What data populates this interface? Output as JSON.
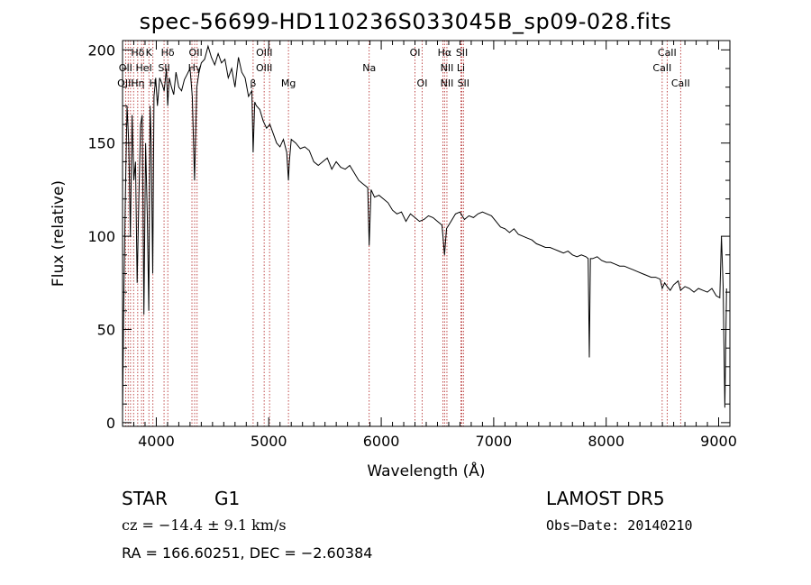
{
  "chart_data": {
    "type": "line",
    "title": "spec-56699-HD110236S033045B_sp09-028.fits",
    "xlabel": "Wavelength (Å)",
    "ylabel": "Flux (relative)",
    "xlim": [
      3700,
      9100
    ],
    "ylim": [
      -2,
      205
    ],
    "xticks": [
      4000,
      5000,
      6000,
      7000,
      8000,
      9000
    ],
    "yticks": [
      0,
      50,
      100,
      150,
      200
    ],
    "grid": false,
    "series": [
      {
        "x": [
          3700,
          3710,
          3725,
          3740,
          3755,
          3770,
          3785,
          3800,
          3815,
          3830,
          3845,
          3860,
          3875,
          3890,
          3905,
          3920,
          3933,
          3945,
          3955,
          3968,
          3980,
          3995,
          4010,
          4030,
          4050,
          4070,
          4090,
          4101,
          4115,
          4135,
          4155,
          4175,
          4200,
          4225,
          4250,
          4275,
          4300,
          4320,
          4340,
          4360,
          4380,
          4400,
          4430,
          4460,
          4490,
          4520,
          4550,
          4580,
          4610,
          4640,
          4670,
          4700,
          4730,
          4760,
          4790,
          4820,
          4850,
          4861,
          4875,
          4890,
          4920,
          4950,
          4980,
          5010,
          5040,
          5070,
          5100,
          5130,
          5160,
          5175,
          5183,
          5200,
          5240,
          5280,
          5320,
          5360,
          5400,
          5440,
          5480,
          5520,
          5560,
          5600,
          5640,
          5680,
          5720,
          5760,
          5800,
          5840,
          5880,
          5893,
          5910,
          5940,
          5980,
          6020,
          6060,
          6100,
          6140,
          6180,
          6220,
          6260,
          6300,
          6340,
          6380,
          6420,
          6460,
          6500,
          6540,
          6563,
          6580,
          6620,
          6660,
          6700,
          6740,
          6780,
          6820,
          6860,
          6900,
          6940,
          6980,
          7020,
          7060,
          7100,
          7140,
          7180,
          7220,
          7260,
          7300,
          7340,
          7380,
          7420,
          7460,
          7500,
          7540,
          7580,
          7620,
          7660,
          7700,
          7740,
          7780,
          7820,
          7840,
          7850,
          7860,
          7880,
          7920,
          7960,
          8000,
          8040,
          8080,
          8120,
          8160,
          8200,
          8240,
          8280,
          8320,
          8360,
          8400,
          8440,
          8480,
          8498,
          8520,
          8542,
          8570,
          8600,
          8640,
          8662,
          8700,
          8740,
          8780,
          8820,
          8860,
          8900,
          8940,
          8980,
          9010,
          9025,
          9040,
          9055,
          9070
        ],
        "y": [
          5,
          60,
          120,
          170,
          150,
          100,
          165,
          130,
          140,
          75,
          120,
          160,
          165,
          58,
          150,
          110,
          60,
          170,
          150,
          80,
          175,
          185,
          170,
          185,
          182,
          178,
          190,
          170,
          185,
          180,
          176,
          188,
          180,
          178,
          184,
          187,
          190,
          175,
          130,
          180,
          188,
          193,
          195,
          202,
          196,
          192,
          198,
          193,
          195,
          185,
          190,
          180,
          196,
          188,
          185,
          175,
          178,
          145,
          172,
          170,
          168,
          162,
          158,
          160,
          155,
          150,
          148,
          152,
          145,
          130,
          140,
          152,
          150,
          147,
          148,
          146,
          140,
          138,
          140,
          142,
          136,
          140,
          137,
          136,
          138,
          134,
          130,
          128,
          126,
          95,
          125,
          121,
          122,
          120,
          118,
          114,
          112,
          113,
          108,
          112,
          110,
          108,
          109,
          111,
          110,
          108,
          106,
          90,
          104,
          108,
          112,
          113,
          109,
          111,
          110,
          112,
          113,
          112,
          111,
          108,
          105,
          104,
          102,
          104,
          101,
          100,
          99,
          98,
          96,
          95,
          94,
          94,
          93,
          92,
          91,
          92,
          90,
          89,
          90,
          89,
          88,
          35,
          88,
          88,
          89,
          87,
          86,
          86,
          85,
          84,
          84,
          83,
          82,
          81,
          80,
          79,
          78,
          78,
          77,
          72,
          75,
          73,
          71,
          74,
          76,
          71,
          73,
          72,
          70,
          72,
          71,
          70,
          72,
          68,
          67,
          100,
          73,
          8,
          72
        ]
      }
    ],
    "line_labels": [
      {
        "name": "Hδ",
        "x": 3835,
        "row": 1
      },
      {
        "name": "K",
        "x": 3934,
        "row": 1
      },
      {
        "name": "Hδ",
        "x": 4102,
        "row": 1
      },
      {
        "name": "OII",
        "x": 4350,
        "row": 1
      },
      {
        "name": "OIII",
        "x": 4960,
        "row": 1
      },
      {
        "name": "OI",
        "x": 6300,
        "row": 1
      },
      {
        "name": "Hα",
        "x": 6563,
        "row": 1
      },
      {
        "name": "SII",
        "x": 6717,
        "row": 1
      },
      {
        "name": "CaII",
        "x": 8542,
        "row": 1
      },
      {
        "name": "OII",
        "x": 3727,
        "row": 2
      },
      {
        "name": "HeI",
        "x": 3889,
        "row": 2
      },
      {
        "name": "SII",
        "x": 4069,
        "row": 2
      },
      {
        "name": "Hγ",
        "x": 4341,
        "row": 2
      },
      {
        "name": "OIII",
        "x": 4959,
        "row": 2
      },
      {
        "name": "Na",
        "x": 5893,
        "row": 2
      },
      {
        "name": "NII",
        "x": 6584,
        "row": 2
      },
      {
        "name": "Li",
        "x": 6708,
        "row": 2
      },
      {
        "name": "CaII",
        "x": 8498,
        "row": 2
      },
      {
        "name": "OIII",
        "x": 3727,
        "row": 3
      },
      {
        "name": "Hη",
        "x": 3835,
        "row": 3
      },
      {
        "name": "H",
        "x": 3970,
        "row": 3
      },
      {
        "name": "β",
        "x": 4861,
        "row": 3
      },
      {
        "name": "Mg",
        "x": 5175,
        "row": 3
      },
      {
        "name": "OI",
        "x": 6364,
        "row": 3
      },
      {
        "name": "NII",
        "x": 6584,
        "row": 3
      },
      {
        "name": "SII",
        "x": 6731,
        "row": 3
      },
      {
        "name": "CaII",
        "x": 8662,
        "row": 3
      }
    ],
    "line_markers": [
      3727,
      3750,
      3771,
      3798,
      3835,
      3869,
      3889,
      3934,
      3970,
      4069,
      4102,
      4317,
      4341,
      4363,
      4861,
      4959,
      5007,
      5175,
      5893,
      6300,
      6364,
      6548,
      6563,
      6584,
      6708,
      6717,
      6731,
      8498,
      8542,
      8662
    ]
  },
  "footer": {
    "object_class": "STAR",
    "subclass": "G1",
    "survey": "LAMOST DR5",
    "cz_label": "cz = −14.4 ± 9.1 km/s",
    "obs_date": "Obs−Date: 20140210",
    "coords": "RA = 166.60251, DEC =  −2.60384"
  },
  "colors": {
    "marker": "#b02020",
    "spectrum": "#000000",
    "axes": "#000000"
  }
}
